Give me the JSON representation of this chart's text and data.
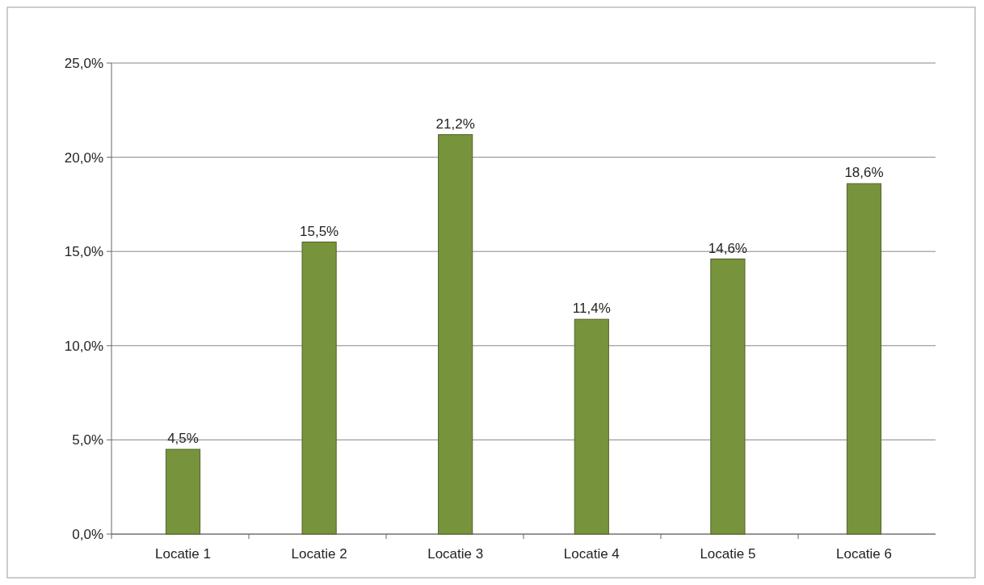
{
  "chart_data": {
    "type": "bar",
    "categories": [
      "Locatie 1",
      "Locatie 2",
      "Locatie 3",
      "Locatie 4",
      "Locatie 5",
      "Locatie 6"
    ],
    "values": [
      4.5,
      15.5,
      21.2,
      11.4,
      14.6,
      18.6
    ],
    "value_labels": [
      "4,5%",
      "15,5%",
      "21,2%",
      "11,4%",
      "14,6%",
      "18,6%"
    ],
    "color": "#77933c",
    "ylim": [
      0,
      25
    ],
    "yticks": [
      {
        "value": 0,
        "label": "0,0%"
      },
      {
        "value": 5,
        "label": "5,0%"
      },
      {
        "value": 10,
        "label": "10,0%"
      },
      {
        "value": 15,
        "label": "15,0%"
      },
      {
        "value": 20,
        "label": "20,0%"
      },
      {
        "value": 25,
        "label": "25,0%"
      }
    ],
    "grid": "y"
  }
}
